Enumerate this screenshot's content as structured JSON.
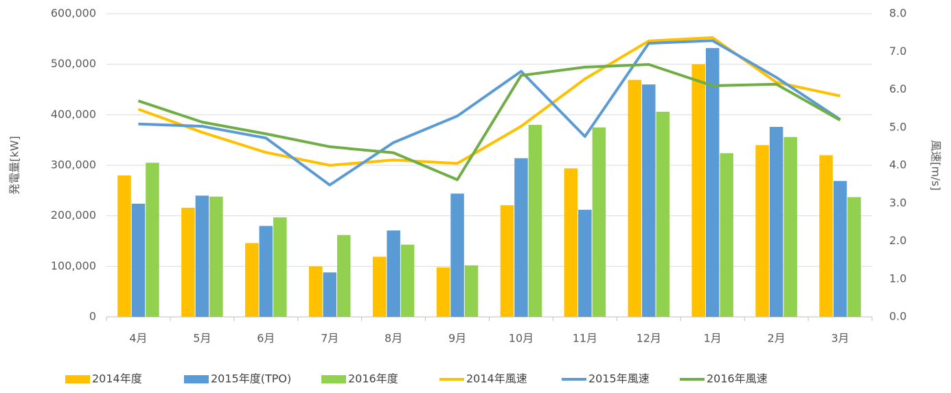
{
  "chart_data": {
    "type": "bar",
    "y_label": "発電量[kW]",
    "y2_label": "風速[m/s]",
    "categories": [
      "4月",
      "5月",
      "6月",
      "7月",
      "8月",
      "9月",
      "10月",
      "11月",
      "12月",
      "1月",
      "2月",
      "3月"
    ],
    "ylim": [
      0,
      600000
    ],
    "yticks": [
      0,
      {
        "value": 100000,
        "label": "100,000"
      },
      {
        "value": 200000,
        "label": "200,000"
      },
      {
        "value": 300000,
        "label": "300,000"
      },
      {
        "value": 400000,
        "label": "400,000"
      },
      {
        "value": 500000,
        "label": "500,000"
      },
      {
        "value": 600000,
        "label": "600,000"
      }
    ],
    "y2lim": [
      0,
      8
    ],
    "y2ticks": [
      {
        "value": 0,
        "label": "0.0"
      },
      {
        "value": 1,
        "label": "1.0"
      },
      {
        "value": 2,
        "label": "2.0"
      },
      {
        "value": 3,
        "label": "3.0"
      },
      {
        "value": 4,
        "label": "4.0"
      },
      {
        "value": 5,
        "label": "5.0"
      },
      {
        "value": 6,
        "label": "6.0"
      },
      {
        "value": 7,
        "label": "7.0"
      },
      {
        "value": 8,
        "label": "8.0"
      }
    ],
    "grid": true,
    "legend": "bottom",
    "series": [
      {
        "name": "2014年度",
        "type": "bar",
        "color": "#FFC000",
        "values": [
          280000,
          216000,
          146000,
          100000,
          119000,
          98000,
          221000,
          294000,
          469000,
          500000,
          340000,
          320000
        ]
      },
      {
        "name": "2015年度(TPO)",
        "type": "bar",
        "color": "#5B9BD5",
        "values": [
          224000,
          240000,
          180000,
          88000,
          171000,
          244000,
          314000,
          212000,
          460000,
          532000,
          376000,
          269000
        ]
      },
      {
        "name": "2016年度",
        "type": "bar",
        "color": "#92D050",
        "values": [
          305000,
          238000,
          197000,
          162000,
          143000,
          102000,
          380000,
          375000,
          406000,
          324000,
          356000,
          237000
        ]
      },
      {
        "name": "2014年風速",
        "type": "line",
        "axis": "y2",
        "color": "#FFC000",
        "values": [
          5.48,
          4.87,
          4.34,
          4.0,
          4.14,
          4.05,
          5.03,
          6.28,
          7.28,
          7.37,
          6.19,
          5.83
        ]
      },
      {
        "name": "2015年風速",
        "type": "line",
        "axis": "y2",
        "color": "#5B9BD5",
        "values": [
          5.09,
          5.03,
          4.72,
          3.48,
          4.6,
          5.3,
          6.48,
          4.76,
          7.22,
          7.29,
          6.32,
          5.21
        ]
      },
      {
        "name": "2016年風速",
        "type": "line",
        "axis": "y2",
        "color": "#70AD47",
        "values": [
          5.7,
          5.14,
          4.83,
          4.49,
          4.33,
          3.62,
          6.37,
          6.59,
          6.66,
          6.1,
          6.14,
          5.19
        ]
      }
    ]
  }
}
